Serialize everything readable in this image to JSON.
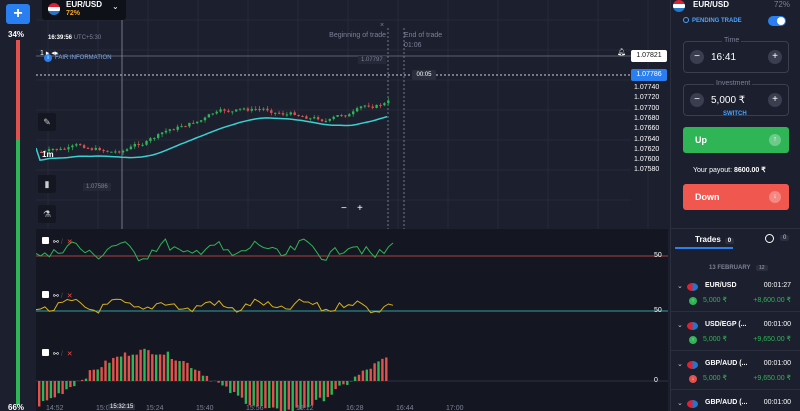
{
  "rail": {
    "add_label": "+",
    "top_pct": "34%",
    "bottom_pct": "66%"
  },
  "asset": {
    "name": "EUR/USD",
    "payout_pct": "72%"
  },
  "chart_header": {
    "clock": "16:39:56",
    "tz": "UTC+5:30",
    "fair_info": "FAIR INFORMATION",
    "zoom": "1"
  },
  "markers": {
    "begin": "Beginning of trade",
    "end": "End of trade",
    "end_time": "01:06",
    "timer": "00:05"
  },
  "prices": {
    "alert": "1.07821",
    "current": "1.07786",
    "tip_high": "1.07797",
    "tip_low": "1.07586",
    "ticks": [
      "1.07740",
      "1.07720",
      "1.07700",
      "1.07680",
      "1.07660",
      "1.07640",
      "1.07620",
      "1.07600",
      "1.07580"
    ]
  },
  "timeframe": "1m",
  "indicators": [
    {
      "level": "50"
    },
    {
      "level": "50"
    },
    {
      "level": "0"
    }
  ],
  "time_axis": {
    "cursor": "15:32:15",
    "labels": [
      "14:52",
      "15:08",
      "15:24",
      "15:40",
      "15:56",
      "16:12",
      "16:28",
      "16:44",
      "17:00"
    ]
  },
  "panel": {
    "asset": "EUR/USD",
    "pct": "72%",
    "pending": "PENDING TRADE",
    "time_label": "Time",
    "time_value": "16:41",
    "investment_label": "Investment",
    "investment_value": "5,000 ₹",
    "switch": "SWITCH",
    "up": "Up",
    "down": "Down",
    "payout_label": "Your payout:",
    "payout_value": "8600.00 ₹",
    "trades_tab": "Trades",
    "trades_count": "0",
    "clock_count": "0",
    "date": "13 FEBRUARY",
    "date_count": "12"
  },
  "trades": [
    {
      "asset": "EUR/USD",
      "time": "00:01:27",
      "amount": "5,000 ₹",
      "win": "+8,600.00 ₹"
    },
    {
      "asset": "USD/EGP (...",
      "time": "00:01:00",
      "amount": "5,000 ₹",
      "win": "+9,650.00 ₹"
    },
    {
      "asset": "GBP/AUD (...",
      "time": "00:01:00",
      "amount": "5,000 ₹",
      "win": "+9,650.00 ₹"
    },
    {
      "asset": "GBP/AUD (...",
      "time": "00:01:00",
      "amount": "",
      "win": ""
    }
  ],
  "colors": {
    "up": "#2fb556",
    "down": "#e2524d",
    "accent": "#2a7ff0"
  }
}
